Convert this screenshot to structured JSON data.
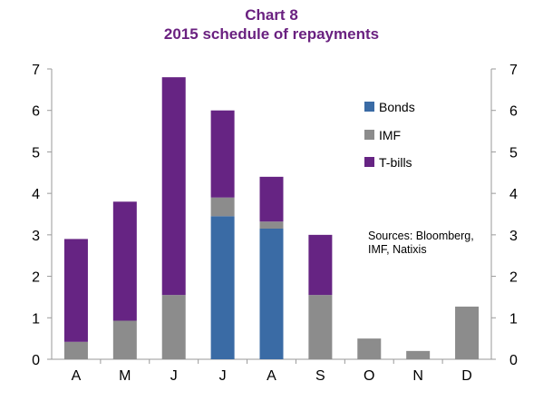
{
  "chart_data": {
    "type": "bar",
    "stacked": true,
    "title": "Chart 8",
    "subtitle": "2015 schedule of repayments",
    "xlabel": "",
    "ylabel": "",
    "categories": [
      "A",
      "M",
      "J",
      "J",
      "A",
      "S",
      "O",
      "N",
      "D"
    ],
    "series": [
      {
        "name": "Bonds",
        "color": "#3a6ba5",
        "values": [
          0,
          0,
          0,
          3.45,
          3.15,
          0,
          0,
          0,
          0
        ]
      },
      {
        "name": "IMF",
        "color": "#8c8c8c",
        "values": [
          0.42,
          0.93,
          1.55,
          0.45,
          0.17,
          1.55,
          0.5,
          0.2,
          1.27
        ]
      },
      {
        "name": "T-bills",
        "color": "#662483",
        "values": [
          2.48,
          2.87,
          5.25,
          2.1,
          1.08,
          1.45,
          0,
          0,
          0
        ]
      }
    ],
    "ylim": [
      0,
      7
    ],
    "yticks": [
      "0",
      "1",
      "2",
      "3",
      "4",
      "5",
      "6",
      "7"
    ],
    "secondary_axis": true,
    "grid": false,
    "legend_position": "top-right",
    "legend_order": [
      "Bonds",
      "IMF",
      "T-bills"
    ],
    "note": [
      "Sources: Bloomberg,",
      "IMF, Natixis"
    ]
  }
}
